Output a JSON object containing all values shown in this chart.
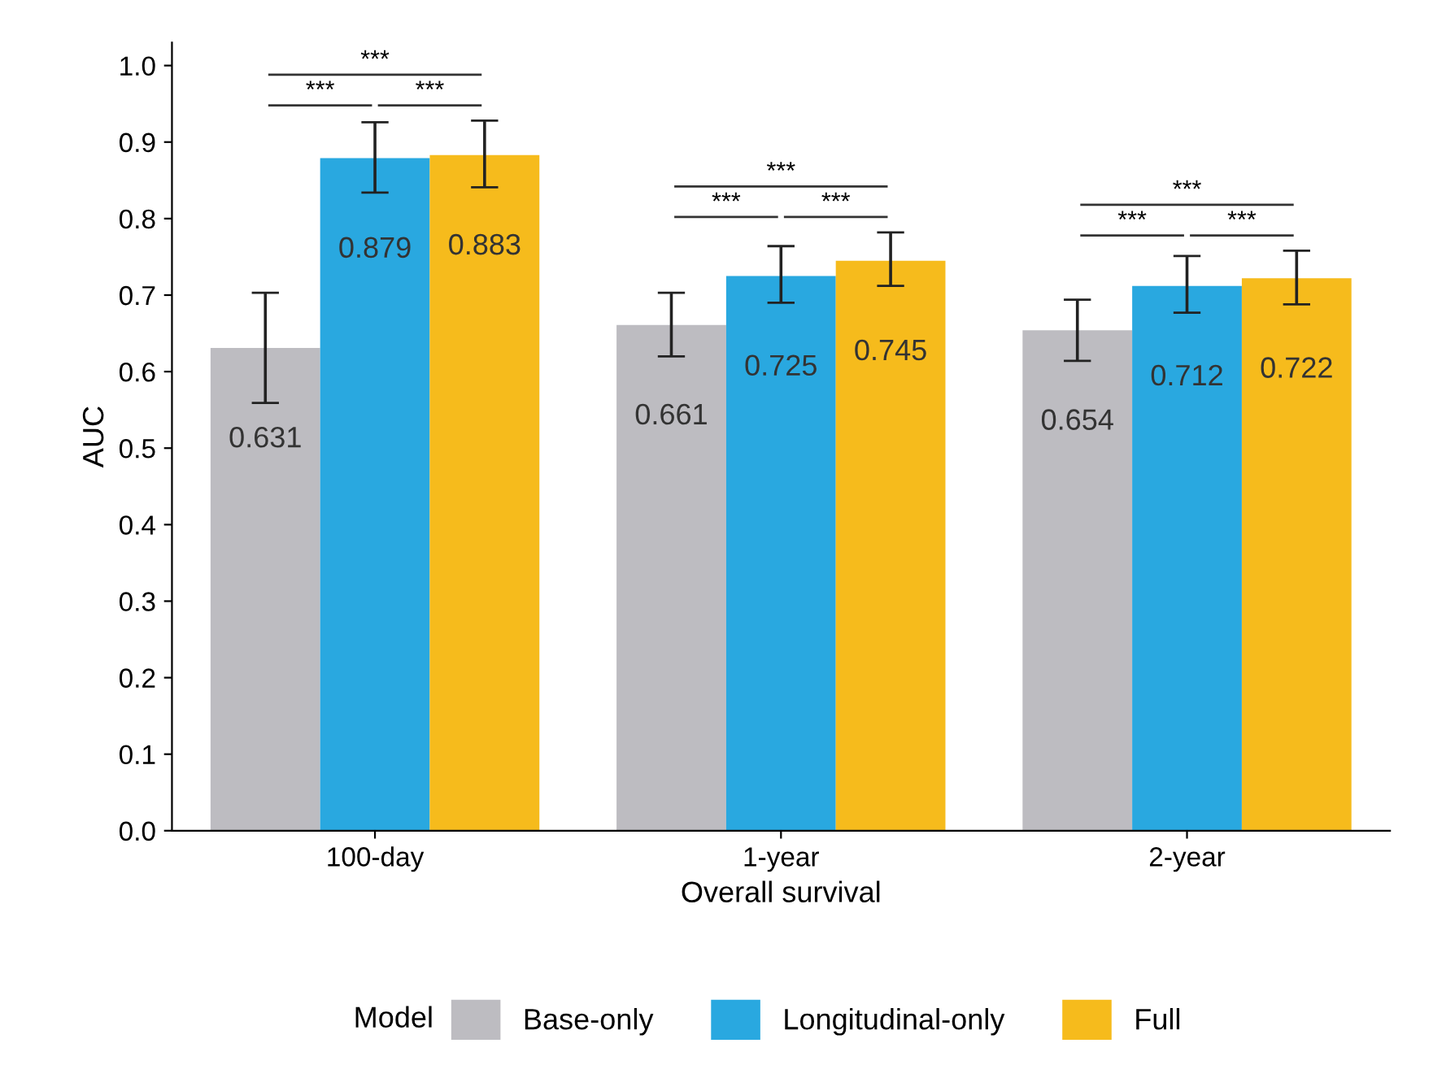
{
  "chart_data": {
    "type": "bar",
    "xlabel": "Overall survival",
    "ylabel": "AUC",
    "legend_title": "Model",
    "categories": [
      "100-day",
      "1-year",
      "2-year"
    ],
    "series": [
      {
        "name": "Base-only",
        "color": "#bdbcc1",
        "values": [
          0.631,
          0.661,
          0.654
        ],
        "errors": [
          [
            0.559,
            0.703
          ],
          [
            0.62,
            0.703
          ],
          [
            0.614,
            0.694
          ]
        ]
      },
      {
        "name": "Longitudinal-only",
        "color": "#29a8e0",
        "values": [
          0.879,
          0.725,
          0.712
        ],
        "errors": [
          [
            0.834,
            0.926
          ],
          [
            0.69,
            0.764
          ],
          [
            0.677,
            0.751
          ]
        ]
      },
      {
        "name": "Full",
        "color": "#f6bb1c",
        "values": [
          0.883,
          0.745,
          0.722
        ],
        "errors": [
          [
            0.841,
            0.928
          ],
          [
            0.712,
            0.782
          ],
          [
            0.688,
            0.758
          ]
        ]
      }
    ],
    "ylim": [
      0,
      1.03
    ],
    "yticks": [
      {
        "value": 0,
        "label": "0.0"
      },
      0.1,
      0.2,
      0.3,
      0.4,
      0.5,
      0.6,
      0.7,
      0.8,
      0.9,
      {
        "value": 1,
        "label": "1.0"
      }
    ],
    "data_labels": true,
    "legend": "bottom",
    "grid": false,
    "annotations": [
      "***",
      "***",
      "***",
      "***",
      "***",
      "***",
      "***",
      "***",
      "***"
    ]
  }
}
